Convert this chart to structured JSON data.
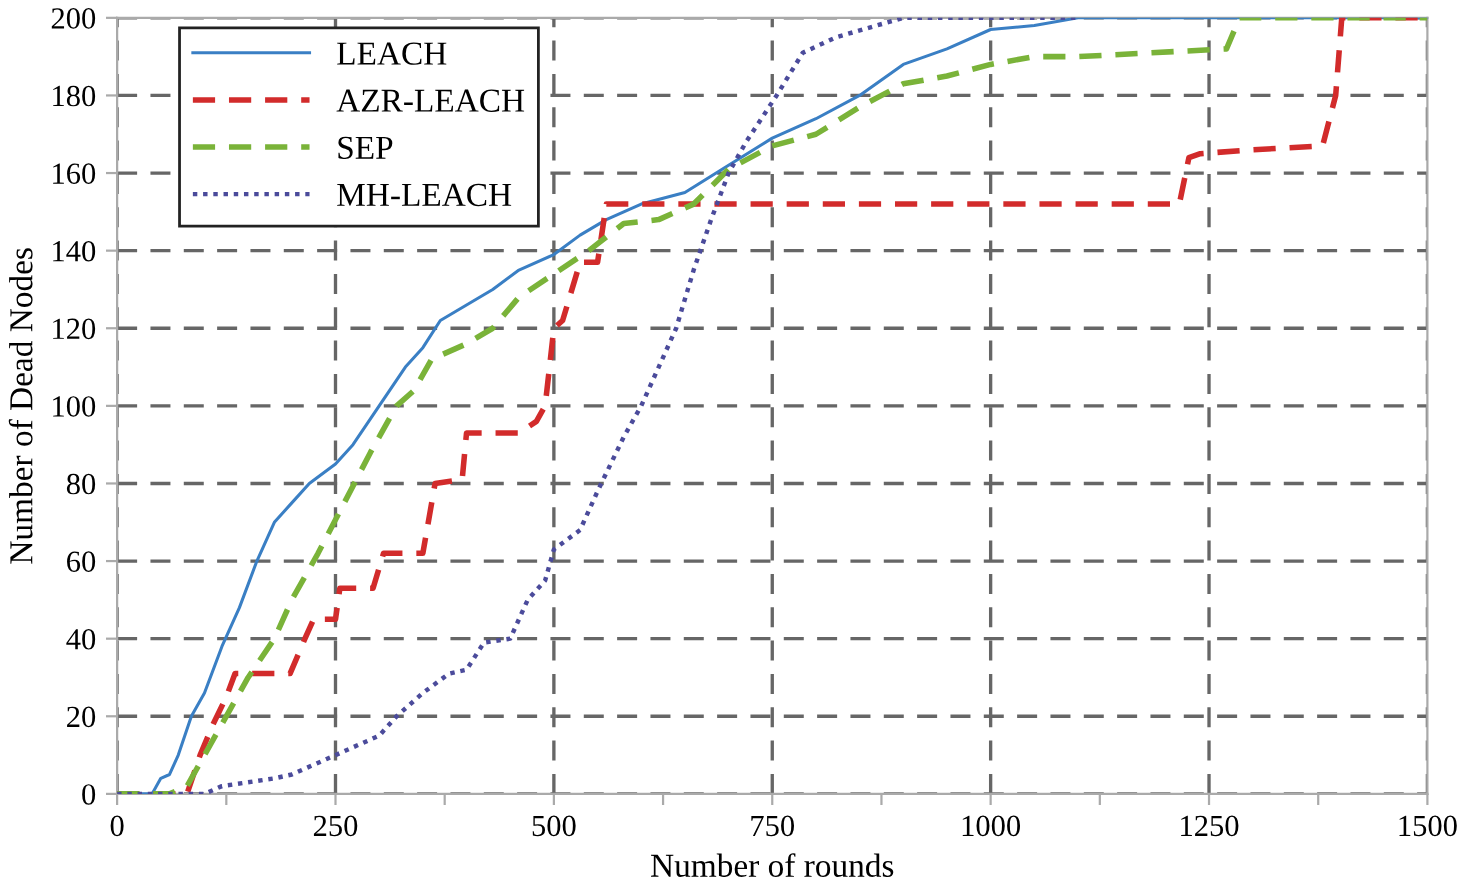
{
  "chart_data": {
    "type": "line",
    "xlabel": "Number of rounds",
    "ylabel": "Number of Dead Nodes",
    "xlim": [
      0,
      1500
    ],
    "xticks": [
      0,
      {
        "value": 125,
        "label": null
      },
      250,
      {
        "value": 375,
        "label": null
      },
      500,
      {
        "value": 625,
        "label": null
      },
      750,
      {
        "value": 875,
        "label": null
      },
      1000,
      {
        "value": 1125,
        "label": null
      },
      1250,
      {
        "value": 1375,
        "label": null
      },
      1500
    ],
    "ylim": [
      0,
      200
    ],
    "yticks": [
      0,
      20,
      40,
      60,
      80,
      100,
      120,
      140,
      160,
      180,
      200
    ],
    "grid": true,
    "legend": "top left",
    "series": [
      {
        "name": "LEACH",
        "color": "#3a7fc4",
        "line_style": "solid",
        "x": [
          0,
          40,
          50,
          60,
          70,
          85,
          100,
          120,
          140,
          160,
          180,
          200,
          220,
          250,
          270,
          300,
          330,
          350,
          370,
          400,
          430,
          460,
          500,
          530,
          560,
          600,
          650,
          700,
          750,
          800,
          850,
          900,
          950,
          1000,
          1050,
          1100,
          1500
        ],
        "values": [
          0,
          0,
          4,
          5,
          10,
          20,
          26,
          38,
          48,
          60,
          70,
          75,
          80,
          85,
          90,
          100,
          110,
          115,
          122,
          126,
          130,
          135,
          139,
          144,
          148,
          152,
          155,
          162,
          169,
          174,
          180,
          188,
          192,
          197,
          198,
          200,
          200
        ]
      },
      {
        "name": "AZR-LEACH",
        "color": "#d22b2b",
        "line_style": "dashed",
        "x": [
          0,
          80,
          95,
          110,
          125,
          135,
          198,
          215,
          225,
          250,
          255,
          293,
          305,
          350,
          364,
          395,
          400,
          460,
          480,
          490,
          500,
          510,
          530,
          550,
          560,
          1216,
          1227,
          1240,
          1300,
          1380,
          1395,
          1402,
          1500
        ],
        "values": [
          0,
          0,
          10,
          18,
          25,
          31,
          31,
          40,
          45,
          45,
          53,
          53,
          62,
          62,
          80,
          81,
          93,
          93,
          96,
          100,
          120,
          122,
          137,
          137,
          152,
          152,
          164,
          165,
          166,
          167,
          180,
          200,
          200
        ]
      },
      {
        "name": "SEP",
        "color": "#7ab339",
        "line_style": "dashed",
        "x": [
          0,
          60,
          80,
          100,
          120,
          150,
          180,
          200,
          230,
          260,
          290,
          320,
          340,
          360,
          400,
          430,
          460,
          500,
          540,
          580,
          620,
          660,
          700,
          750,
          800,
          850,
          900,
          950,
          1000,
          1050,
          1100,
          1270,
          1285,
          1500
        ],
        "values": [
          0,
          0,
          2,
          10,
          18,
          30,
          40,
          50,
          62,
          75,
          88,
          100,
          104,
          112,
          116,
          120,
          128,
          134,
          140,
          147,
          148,
          152,
          161,
          167,
          170,
          177,
          183,
          185,
          188,
          190,
          190,
          192,
          200,
          200
        ]
      },
      {
        "name": "MH-LEACH",
        "color": "#4b4b9b",
        "line_style": "dotted",
        "x": [
          0,
          100,
          120,
          150,
          180,
          200,
          240,
          260,
          300,
          320,
          350,
          380,
          400,
          420,
          450,
          470,
          490,
          500,
          530,
          550,
          580,
          600,
          620,
          640,
          660,
          680,
          700,
          720,
          755,
          785,
          823,
          900,
          1100
        ],
        "values": [
          0,
          0,
          2,
          3,
          4,
          5,
          9,
          11,
          15,
          20,
          26,
          31,
          32,
          39,
          40,
          50,
          55,
          63,
          68,
          78,
          92,
          100,
          110,
          120,
          135,
          148,
          160,
          168,
          180,
          191,
          195,
          200,
          200
        ]
      }
    ]
  }
}
